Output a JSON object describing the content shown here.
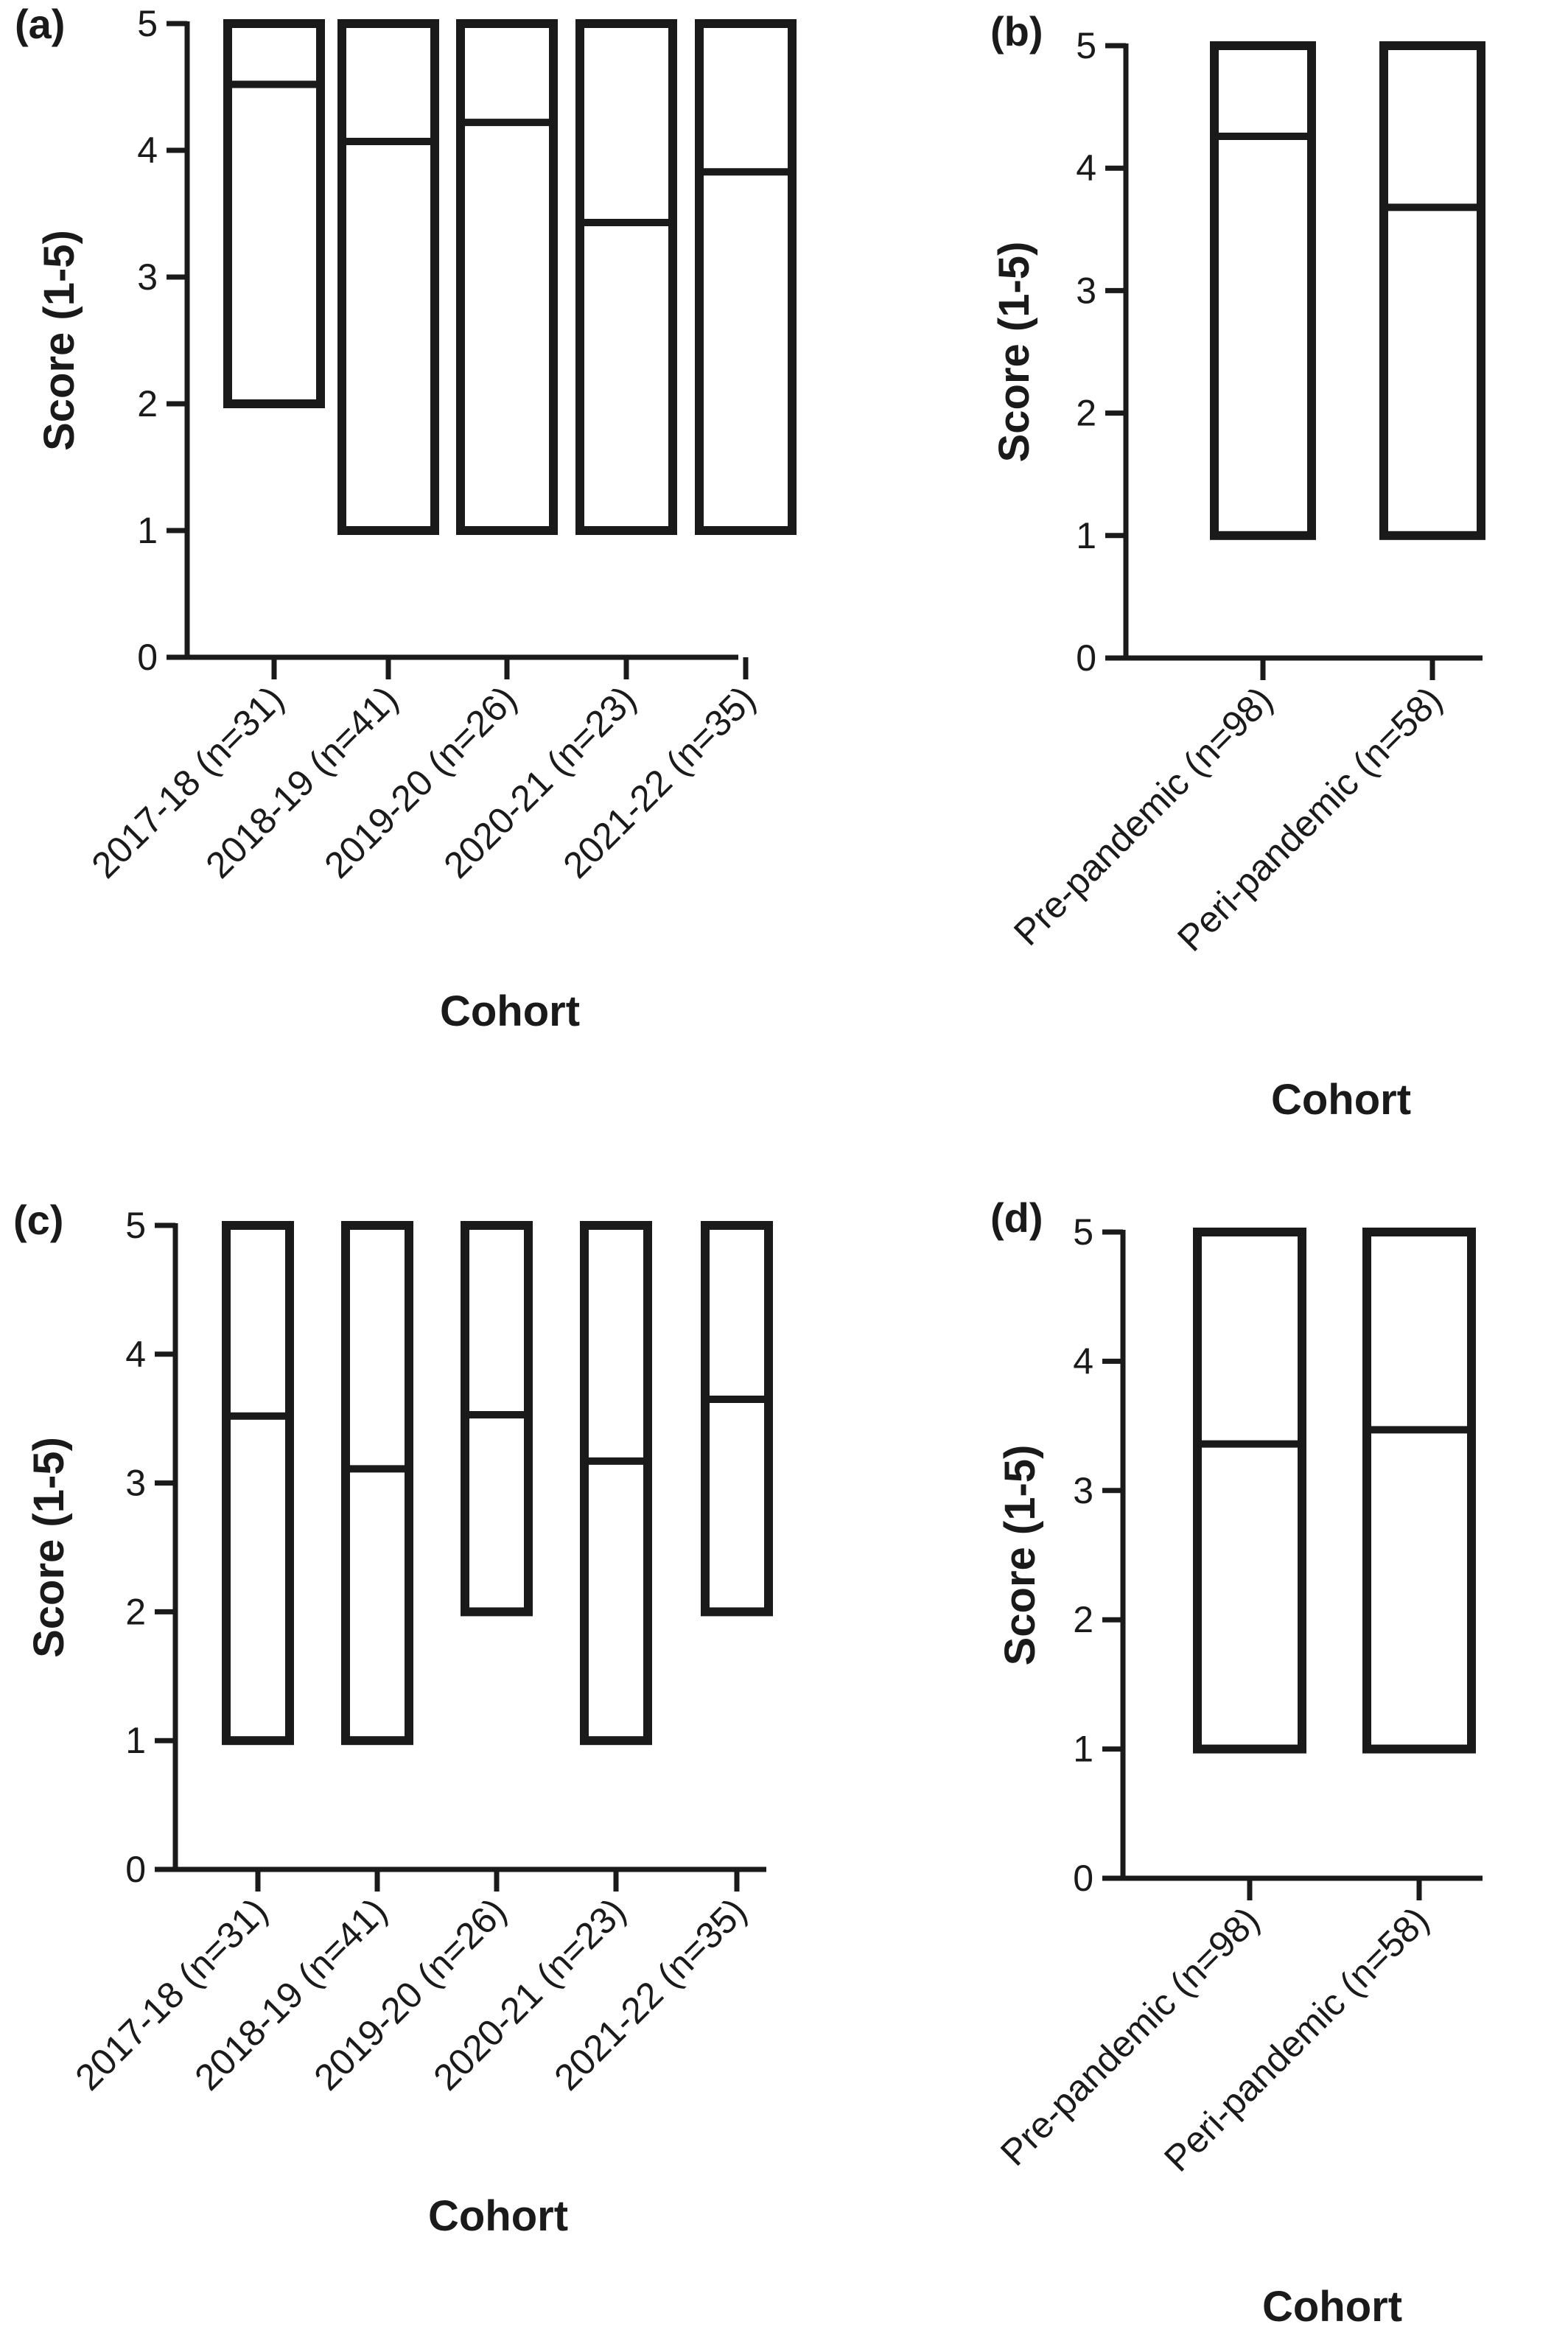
{
  "chart_data": [
    {
      "type": "box",
      "panel_label": "(a)",
      "ylabel": "Score (1-5)",
      "xlabel": "Cohort",
      "ylim": [
        0,
        5
      ],
      "yticks": [
        "0",
        "1",
        "2",
        "3",
        "4",
        "5"
      ],
      "categories": [
        "2017-18 (n=31)",
        "2018-19 (n=41)",
        "2019-20 (n=26)",
        "2020-21 (n=23)",
        "2021-22 (n=35)"
      ],
      "min": [
        2,
        1,
        1,
        1,
        1
      ],
      "max": [
        5,
        5,
        5,
        5,
        5
      ],
      "median": [
        4.52,
        4.07,
        4.22,
        3.43,
        3.83
      ]
    },
    {
      "type": "box",
      "panel_label": "(b)",
      "ylabel": "Score (1-5)",
      "xlabel": "Cohort",
      "ylim": [
        0,
        5
      ],
      "yticks": [
        "0",
        "1",
        "2",
        "3",
        "4",
        "5"
      ],
      "categories": [
        "Pre-pandemic (n=98)",
        "Peri-pandemic (n=58)"
      ],
      "min": [
        1,
        1
      ],
      "max": [
        5,
        5
      ],
      "median": [
        4.26,
        3.68
      ]
    },
    {
      "type": "box",
      "panel_label": "(c)",
      "ylabel": "Score (1-5)",
      "xlabel": "Cohort",
      "ylim": [
        0,
        5
      ],
      "yticks": [
        "0",
        "1",
        "2",
        "3",
        "4",
        "5"
      ],
      "categories": [
        "2017-18 (n=31)",
        "2018-19 (n=41)",
        "2019-20 (n=26)",
        "2020-21 (n=23)",
        "2021-22 (n=35)"
      ],
      "min": [
        1,
        1,
        2,
        1,
        2
      ],
      "max": [
        5,
        5,
        5,
        5,
        5
      ],
      "median": [
        3.52,
        3.11,
        3.53,
        3.17,
        3.65
      ]
    },
    {
      "type": "box",
      "panel_label": "(d)",
      "ylabel": "Score (1-5)",
      "xlabel": "Cohort",
      "ylim": [
        0,
        5
      ],
      "yticks": [
        "0",
        "1",
        "2",
        "3",
        "4",
        "5"
      ],
      "categories": [
        "Pre-pandemic (n=98)",
        "Peri-pandemic (n=58)"
      ],
      "min": [
        1,
        1
      ],
      "max": [
        5,
        5
      ],
      "median": [
        3.36,
        3.47
      ]
    }
  ]
}
